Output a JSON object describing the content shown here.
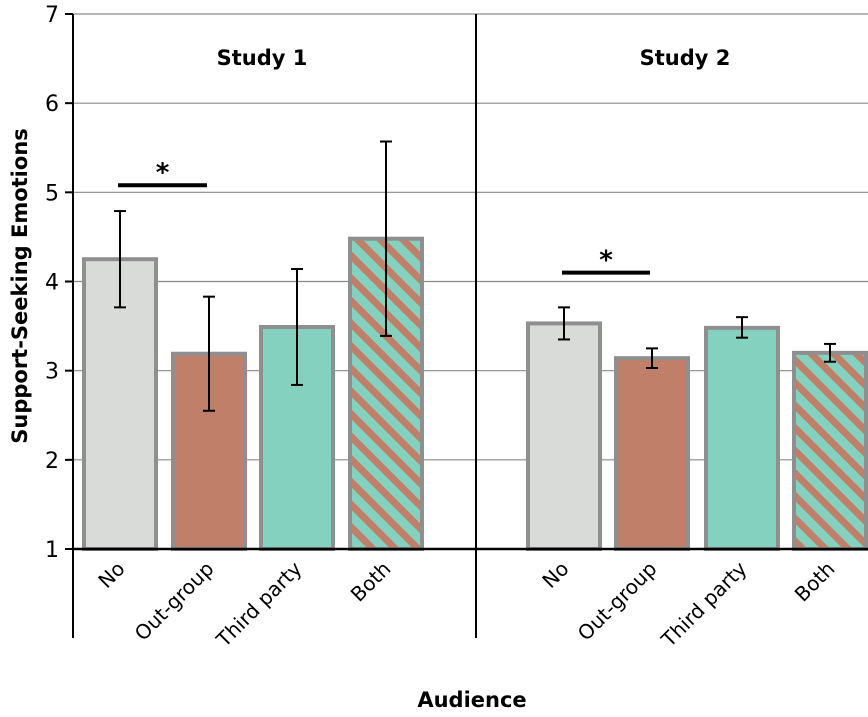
{
  "chart_data": {
    "type": "bar",
    "ylabel": "Support-Seeking Emotions",
    "xlabel": "Audience",
    "ylim": [
      1,
      7
    ],
    "yticks": [
      1,
      2,
      3,
      4,
      5,
      6,
      7
    ],
    "grid": true,
    "categories": [
      "No",
      "Out-group",
      "Third party",
      "Both"
    ],
    "colors": {
      "No": "#d9dbd9",
      "Out-group": "#c07f68",
      "Third party": "#84d1c0",
      "Both_stripe_a": "#84d1c0",
      "Both_stripe_b": "#c07f68",
      "bar_stroke": "#8f8f8f"
    },
    "panels": [
      {
        "title": "Study 1",
        "values": [
          4.25,
          3.19,
          3.49,
          4.48
        ],
        "error_low": [
          3.71,
          2.55,
          2.84,
          3.39
        ],
        "error_high": [
          4.79,
          3.83,
          4.14,
          5.57
        ],
        "significance": {
          "between": [
            "No",
            "Out-group"
          ],
          "y": 5.08,
          "label": "*"
        }
      },
      {
        "title": "Study 2",
        "values": [
          3.53,
          3.14,
          3.48,
          3.2
        ],
        "error_low": [
          3.35,
          3.03,
          3.37,
          3.1
        ],
        "error_high": [
          3.71,
          3.25,
          3.6,
          3.3
        ],
        "significance": {
          "between": [
            "No",
            "Out-group"
          ],
          "y": 4.1,
          "label": "*"
        }
      }
    ]
  }
}
